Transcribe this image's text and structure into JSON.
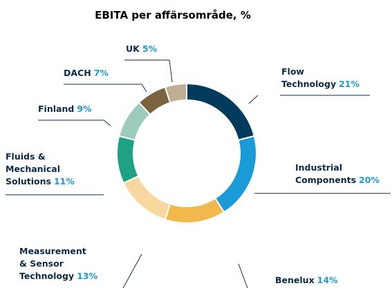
{
  "chart_data": {
    "type": "donut",
    "title": "EBITA per affärsområde, %",
    "categories": [
      "Flow\nTechnology",
      "Industrial\nComponents",
      "Benelux",
      "Measurement\n& Sensor\nTechnology",
      "Fluids &\nMechanical\nSolutions",
      "Finland",
      "DACH",
      "UK"
    ],
    "values": [
      21,
      20,
      14,
      13,
      11,
      9,
      7,
      5
    ],
    "value_labels": [
      "21%",
      "20%",
      "14%",
      "13%",
      "11%",
      "9%",
      "7%",
      "5%"
    ],
    "colors": [
      "#003a5d",
      "#1a9ad6",
      "#f2b84b",
      "#f8d8a0",
      "#1fa184",
      "#9ccbbd",
      "#7a6440",
      "#bfae93"
    ]
  }
}
